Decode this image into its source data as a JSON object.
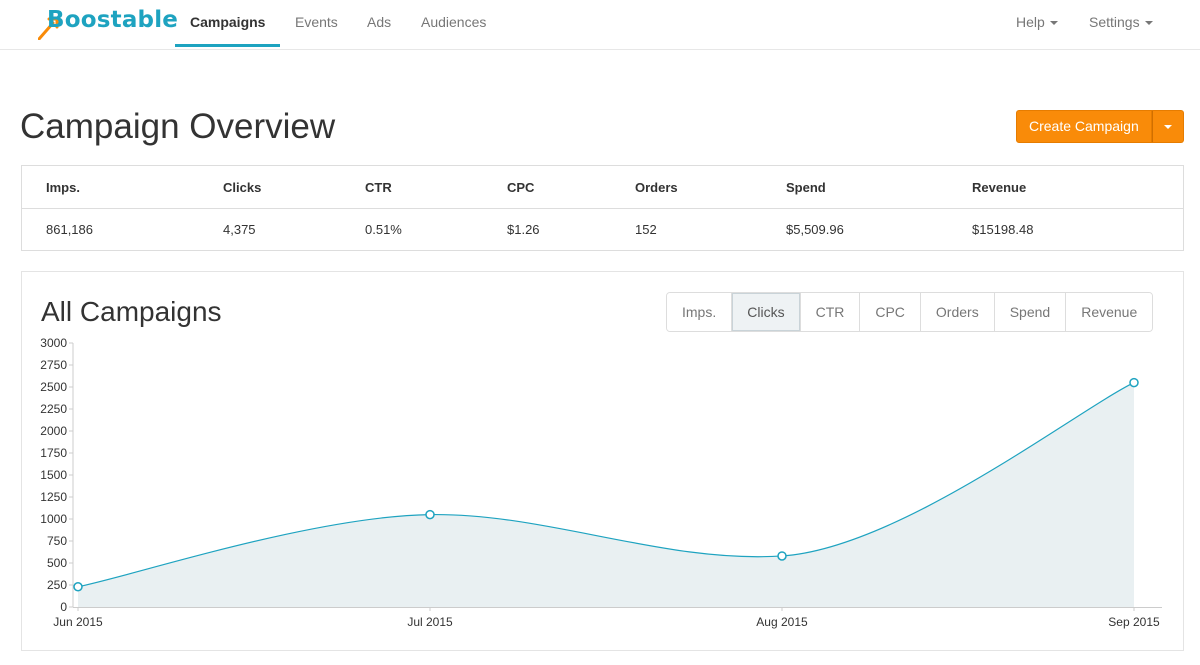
{
  "brand": {
    "name": "Boostable",
    "color": "#1ea3c0",
    "arrow_color": "#f98b09"
  },
  "nav": {
    "tabs": [
      "Campaigns",
      "Events",
      "Ads",
      "Audiences"
    ],
    "active_tab": "Campaigns",
    "help_label": "Help",
    "settings_label": "Settings"
  },
  "page": {
    "title": "Campaign Overview",
    "create_button_label": "Create Campaign",
    "create_button_color": "#f98b09"
  },
  "stats": {
    "headers": [
      "Imps.",
      "Clicks",
      "CTR",
      "CPC",
      "Orders",
      "Spend",
      "Revenue"
    ],
    "values": [
      "861,186",
      "4,375",
      "0.51%",
      "$1.26",
      "152",
      "$5,509.96",
      "$15198.48"
    ]
  },
  "chart_panel": {
    "title": "All Campaigns",
    "metric_tabs": [
      "Imps.",
      "Clicks",
      "CTR",
      "CPC",
      "Orders",
      "Spend",
      "Revenue"
    ],
    "active_metric": "Clicks"
  },
  "chart_data": {
    "type": "area",
    "title": "All Campaigns",
    "categories": [
      "Jun 2015",
      "Jul 2015",
      "Aug 2015",
      "Sep 2015"
    ],
    "series": [
      {
        "values": [
          230,
          1050,
          580,
          2550
        ],
        "color": "#1ea3c0",
        "fill": "#e9f0f2"
      }
    ],
    "yticks": [
      0,
      250,
      500,
      750,
      1000,
      1250,
      1500,
      1750,
      2000,
      2250,
      2500,
      2750,
      3000
    ],
    "ylim": [
      0,
      3000
    ],
    "xlabel": "",
    "ylabel": "",
    "grid": false,
    "legend": "none"
  }
}
